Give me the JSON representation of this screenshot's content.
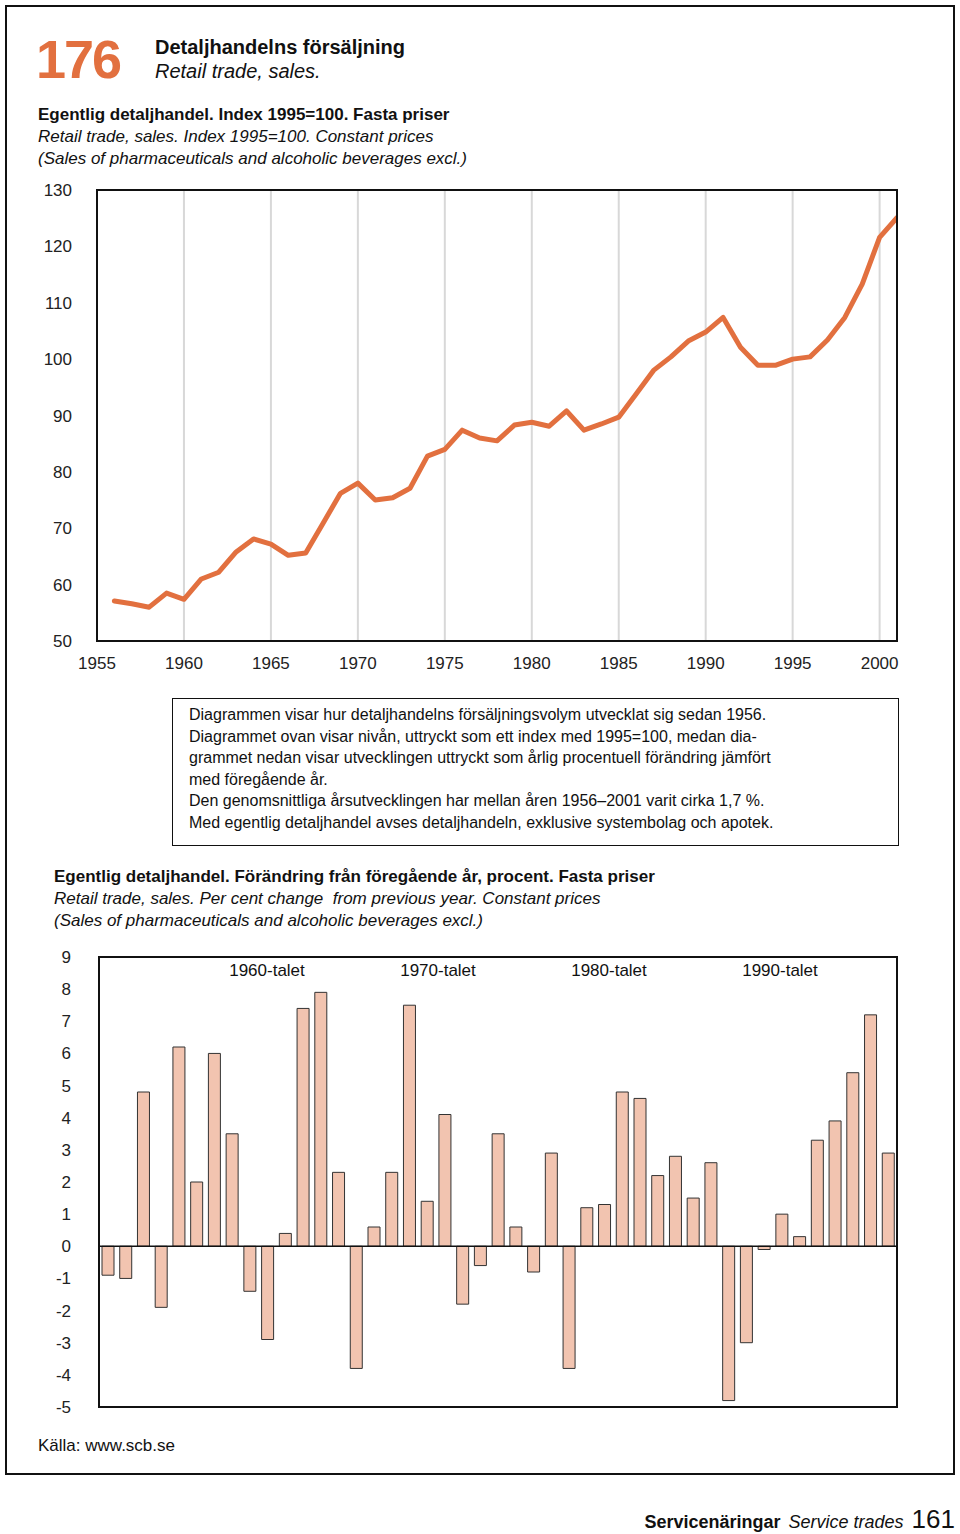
{
  "header": {
    "number": 176,
    "title": "Detaljhandelns försäljning",
    "subtitle": "Retail trade, sales."
  },
  "chart_data": [
    {
      "type": "line",
      "title": "Egentlig detaljhandel. Index 1995=100. Fasta priser",
      "subtitle": [
        "Retail trade, sales. Index 1995=100. Constant prices",
        "(Sales of pharmaceuticals and alcoholic beverages excl.)"
      ],
      "x": [
        1956,
        1957,
        1958,
        1959,
        1960,
        1961,
        1962,
        1963,
        1964,
        1965,
        1966,
        1967,
        1968,
        1969,
        1970,
        1971,
        1972,
        1973,
        1974,
        1975,
        1976,
        1977,
        1978,
        1979,
        1980,
        1981,
        1982,
        1983,
        1984,
        1985,
        1986,
        1987,
        1988,
        1989,
        1990,
        1991,
        1992,
        1993,
        1994,
        1995,
        1996,
        1997,
        1998,
        1999,
        2000,
        2001
      ],
      "values": [
        57.1,
        56.6,
        56.0,
        58.5,
        57.4,
        61.0,
        62.2,
        65.8,
        68.1,
        67.2,
        65.2,
        65.6,
        70.9,
        76.2,
        78.0,
        75.0,
        75.4,
        77.1,
        82.8,
        84.0,
        87.4,
        86.0,
        85.5,
        88.3,
        88.8,
        88.1,
        90.8,
        87.4,
        88.5,
        89.7,
        93.8,
        98.0,
        100.4,
        103.2,
        104.8,
        107.4,
        102.1,
        98.9,
        98.9,
        100.0,
        100.4,
        103.4,
        107.4,
        113.3,
        121.6,
        125.1
      ],
      "color": "#e2703f",
      "xlim": [
        1955,
        2001
      ],
      "xticks": [
        1955,
        1960,
        1965,
        1970,
        1975,
        1980,
        1985,
        1990,
        1995,
        2000
      ],
      "ylim": [
        50,
        130
      ],
      "yticks": [
        50,
        60,
        70,
        80,
        90,
        100,
        110,
        120,
        130
      ],
      "grid": true
    },
    {
      "type": "bar",
      "title": "Egentlig detaljhandel. Förändring från föregående år, procent. Fasta priser",
      "subtitle": [
        "Retail trade, sales. Per cent change  from previous year. Constant prices",
        "(Sales of pharmaceuticals and alcoholic beverages excl.)"
      ],
      "annotations": [
        "1960-talet",
        "1970-talet",
        "1980-talet",
        "1990-talet"
      ],
      "categories": [
        null,
        null,
        null,
        null,
        null,
        null,
        null,
        null,
        null,
        null,
        null,
        null,
        null,
        null,
        null,
        null,
        null,
        null,
        null,
        null,
        null,
        null,
        null,
        null,
        null,
        null,
        null,
        null,
        null,
        null,
        null,
        null,
        null,
        null,
        null,
        null,
        null,
        null,
        null,
        null,
        null,
        null,
        null,
        null,
        null
      ],
      "values": [
        -0.9,
        -1.0,
        4.8,
        -1.9,
        6.2,
        2.0,
        6.0,
        3.5,
        -1.4,
        -2.9,
        0.4,
        7.4,
        7.9,
        2.3,
        -3.8,
        0.6,
        2.3,
        7.5,
        1.4,
        4.1,
        -1.8,
        -0.6,
        3.5,
        0.6,
        -0.8,
        2.9,
        -3.8,
        1.2,
        1.3,
        4.8,
        4.6,
        2.2,
        2.8,
        1.5,
        2.6,
        -4.8,
        -3.0,
        -0.1,
        1.0,
        0.3,
        3.3,
        3.9,
        5.4,
        7.2,
        2.9
      ],
      "color": "#f2c4b0",
      "ylim": [
        -5,
        9
      ],
      "yticks": [
        -5,
        -4,
        -3,
        -2,
        -1,
        0,
        1,
        2,
        3,
        4,
        5,
        6,
        7,
        8,
        9
      ],
      "grid": false,
      "tick_labels": "y"
    }
  ],
  "description": [
    "Diagrammen visar hur detaljhandelns försäljningsvolym utvecklat sig sedan 1956.",
    "Diagrammet ovan visar nivån, uttryckt som ett index med 1995=100, medan dia-",
    "grammet nedan visar utvecklingen uttryckt som årlig procentuell förändring jämfört",
    "med föregående år.",
    "Den genomsnittliga årsutvecklingen har mellan åren 1956–2001 varit cirka 1,7 %.",
    "Med egentlig detaljhandel avses detaljhandeln, exklusive systembolag och apotek."
  ],
  "source": "Källa: www.scb.se",
  "footer": {
    "title": "Servicenäringar",
    "subtitle": "Service trades",
    "page": 161
  }
}
